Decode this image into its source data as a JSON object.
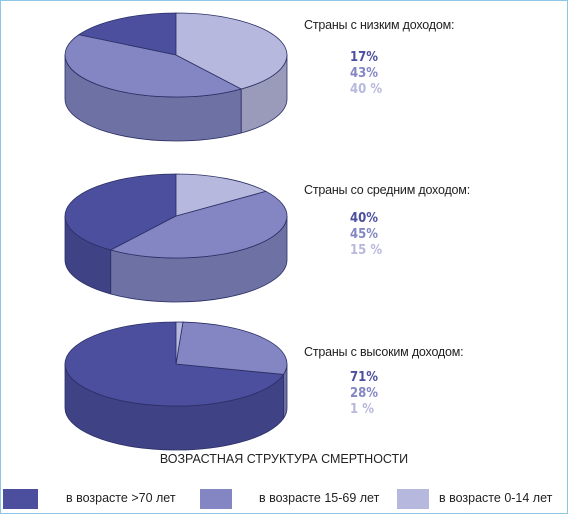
{
  "chart_data": {
    "type": "pie",
    "title": "ВОЗРАСТНАЯ СТРУКТУРА СМЕРТНОСТИ",
    "series_names": [
      "в возрасте >70 лет",
      "в возрасте 15-69 лет",
      "в возрасте 0-14 лет"
    ],
    "colors": [
      "#4b4f9e",
      "#8386c2",
      "#b7b8dd"
    ],
    "groups": [
      {
        "label": "Страны с низким доходом:",
        "values": [
          17,
          43,
          40
        ],
        "value_labels": [
          "17%",
          "43%",
          "40 %"
        ]
      },
      {
        "label": "Страны со средним доходом:",
        "values": [
          40,
          45,
          15
        ],
        "value_labels": [
          "40%",
          "45%",
          "15 %"
        ]
      },
      {
        "label": "Страны с высоким доходом:",
        "values": [
          71,
          28,
          1
        ],
        "value_labels": [
          "71%",
          "28%",
          "1 %"
        ]
      }
    ]
  }
}
